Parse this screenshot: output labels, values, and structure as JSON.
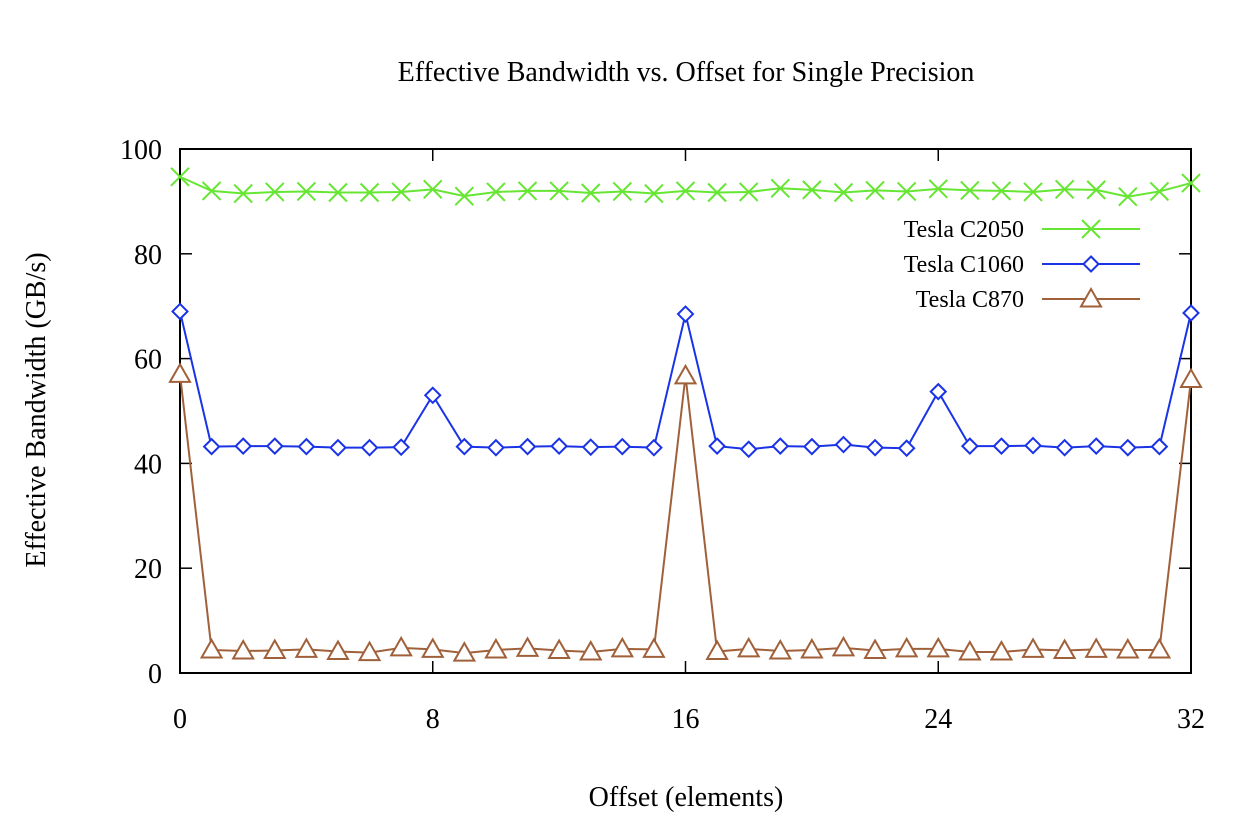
{
  "chart_data": {
    "type": "line",
    "title": "Effective Bandwidth vs. Offset for Single Precision",
    "xlabel": "Offset (elements)",
    "ylabel": "Effective Bandwidth (GB/s)",
    "xlim": [
      0,
      32
    ],
    "ylim": [
      0,
      100
    ],
    "xticks": [
      0,
      8,
      16,
      24,
      32
    ],
    "yticks": [
      0,
      20,
      40,
      60,
      80,
      100
    ],
    "grid": false,
    "legend_position": "top-right",
    "x": [
      0,
      1,
      2,
      3,
      4,
      5,
      6,
      7,
      8,
      9,
      10,
      11,
      12,
      13,
      14,
      15,
      16,
      17,
      18,
      19,
      20,
      21,
      22,
      23,
      24,
      25,
      26,
      27,
      28,
      29,
      30,
      31,
      32
    ],
    "series": [
      {
        "name": "Tesla C2050",
        "marker": "x",
        "color": "#66e633",
        "values": [
          94.7,
          92.0,
          91.5,
          91.8,
          91.9,
          91.7,
          91.7,
          91.8,
          92.3,
          91.0,
          91.8,
          92.0,
          92.0,
          91.6,
          91.9,
          91.5,
          92.0,
          91.7,
          91.8,
          92.5,
          92.2,
          91.7,
          92.1,
          91.9,
          92.4,
          92.1,
          92.0,
          91.8,
          92.3,
          92.2,
          90.9,
          91.9,
          93.5
        ]
      },
      {
        "name": "Tesla C1060",
        "marker": "diamond",
        "color": "#1a33e6",
        "values": [
          69.0,
          43.2,
          43.3,
          43.3,
          43.2,
          43.0,
          43.0,
          43.1,
          53.0,
          43.2,
          43.0,
          43.2,
          43.3,
          43.1,
          43.2,
          43.0,
          68.5,
          43.3,
          42.7,
          43.3,
          43.2,
          43.6,
          43.0,
          42.9,
          53.7,
          43.3,
          43.3,
          43.4,
          43.0,
          43.3,
          43.0,
          43.2,
          68.7
        ]
      },
      {
        "name": "Tesla C870",
        "marker": "triangle",
        "color": "#a0613a",
        "values": [
          57.0,
          4.4,
          4.2,
          4.3,
          4.5,
          4.1,
          3.9,
          4.8,
          4.5,
          3.8,
          4.4,
          4.7,
          4.3,
          4.0,
          4.6,
          4.5,
          56.7,
          4.1,
          4.6,
          4.2,
          4.4,
          4.8,
          4.3,
          4.6,
          4.6,
          4.0,
          4.0,
          4.5,
          4.3,
          4.5,
          4.4,
          4.4,
          56.0
        ]
      }
    ]
  }
}
